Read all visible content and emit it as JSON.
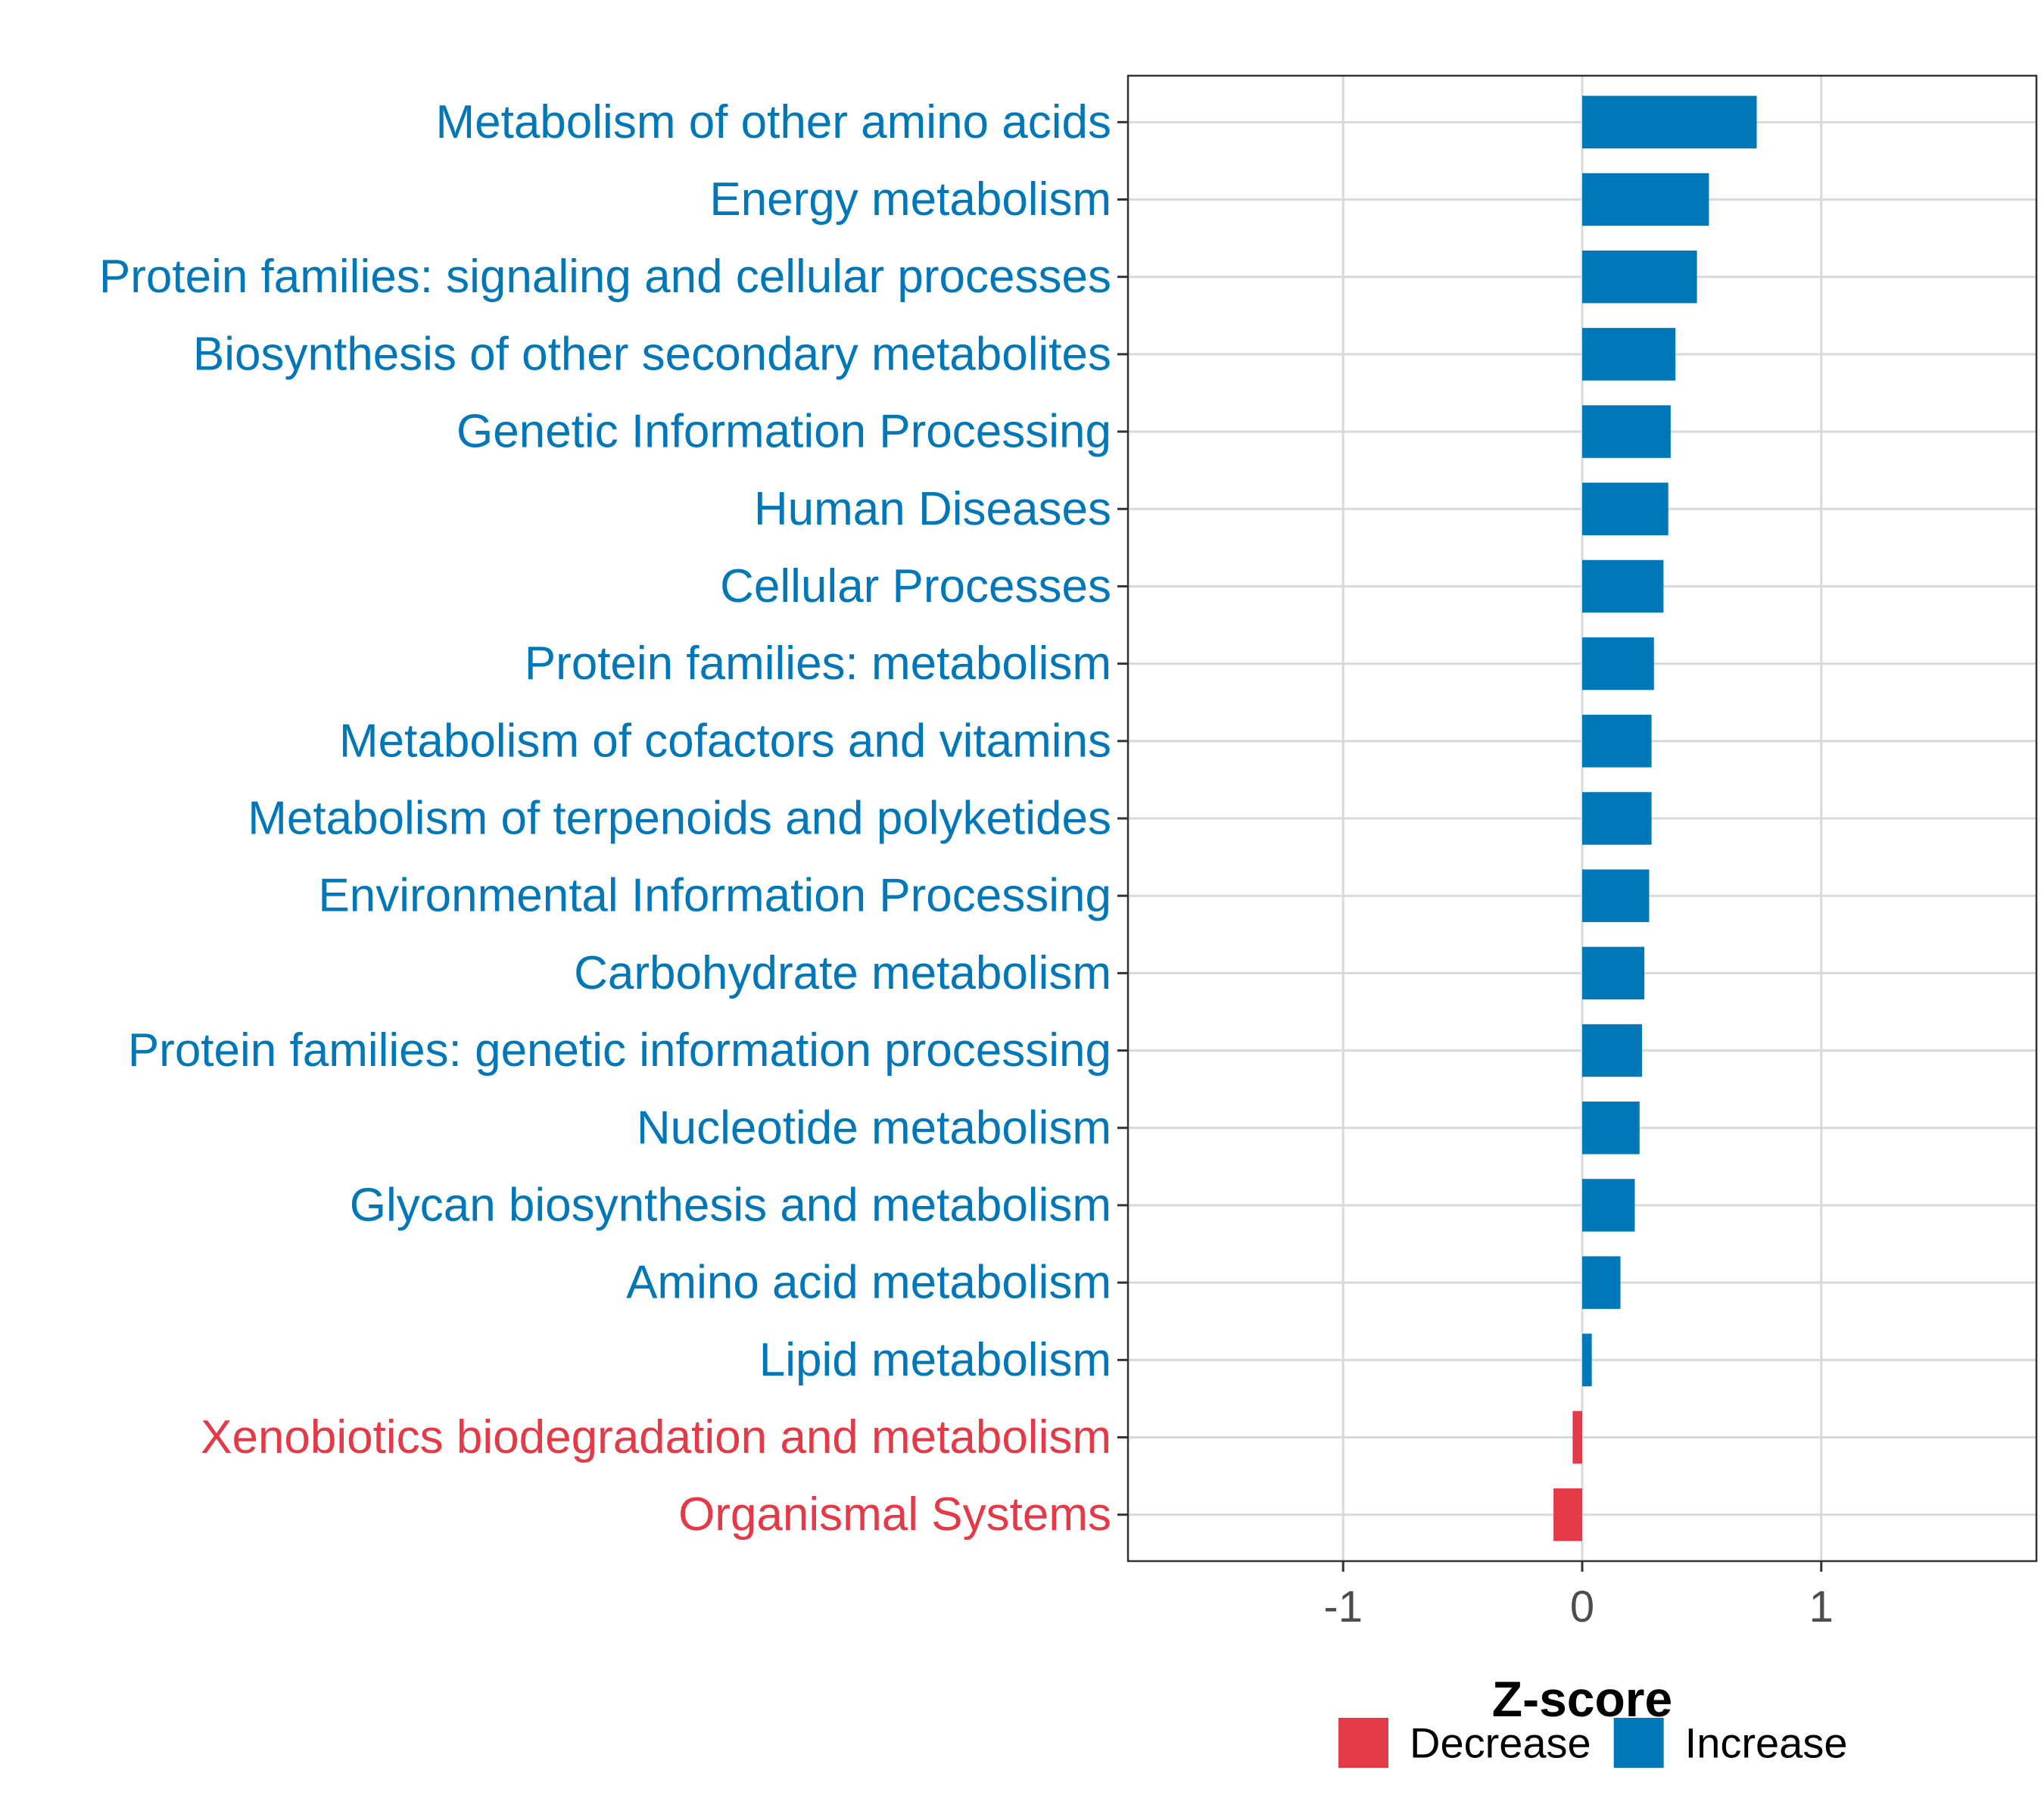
{
  "colors": {
    "increase": "#0077B8",
    "decrease": "#E43A47",
    "grid": "#d9d9d9",
    "panel_border": "#333333"
  },
  "chart_data": {
    "type": "bar",
    "orientation": "horizontal",
    "title": "",
    "xlabel": "Z-score",
    "ylabel": "",
    "xlim": [
      -1.9,
      1.9
    ],
    "xticks": [
      -1,
      0,
      1
    ],
    "xtick_labels": [
      "-1",
      "0",
      "1"
    ],
    "grid": true,
    "legend_position": "bottom",
    "legend": [
      {
        "label": "Decrease",
        "color": "#E43A47"
      },
      {
        "label": "Increase",
        "color": "#0077B8"
      }
    ],
    "categories": [
      "Metabolism of other amino acids",
      "Energy metabolism",
      "Protein families: signaling and cellular processes",
      "Biosynthesis of other secondary metabolites",
      "Genetic Information Processing",
      "Human Diseases",
      "Cellular Processes",
      "Protein families: metabolism",
      "Metabolism of cofactors and vitamins",
      "Metabolism of terpenoids and polyketides",
      "Environmental Information Processing",
      "Carbohydrate metabolism",
      "Protein families: genetic information processing",
      "Nucleotide metabolism",
      "Glycan biosynthesis and metabolism",
      "Amino acid metabolism",
      "Lipid metabolism",
      "Xenobiotics biodegradation and metabolism",
      "Organismal Systems"
    ],
    "values": [
      0.73,
      0.53,
      0.48,
      0.39,
      0.37,
      0.36,
      0.34,
      0.3,
      0.29,
      0.29,
      0.28,
      0.26,
      0.25,
      0.24,
      0.22,
      0.16,
      0.04,
      -0.04,
      -0.12
    ],
    "direction": [
      "Increase",
      "Increase",
      "Increase",
      "Increase",
      "Increase",
      "Increase",
      "Increase",
      "Increase",
      "Increase",
      "Increase",
      "Increase",
      "Increase",
      "Increase",
      "Increase",
      "Increase",
      "Increase",
      "Increase",
      "Decrease",
      "Decrease"
    ]
  }
}
